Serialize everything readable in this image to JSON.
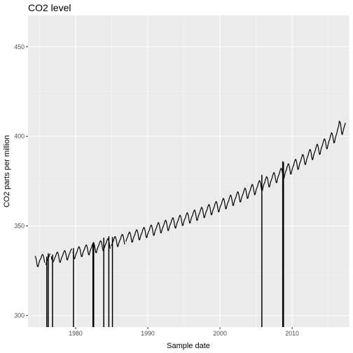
{
  "chart_data": {
    "type": "line",
    "title": "CO2 level",
    "xlabel": "Sample date",
    "ylabel": "CO2 parts per million",
    "xlim": [
      1973.4,
      2017.9
    ],
    "ylim": [
      293.5,
      467.5
    ],
    "x_ticks": [
      1980,
      1990,
      2000,
      2010
    ],
    "x_tick_labels": [
      "1980",
      "1990",
      "2000",
      "2010"
    ],
    "y_ticks": [
      300,
      350,
      400,
      450
    ],
    "y_tick_labels": [
      "300",
      "350",
      "400",
      "450"
    ],
    "grid": true,
    "legend": "none",
    "colors": {
      "panel": "#ebebeb",
      "grid_major": "#ffffff",
      "line": "#000000",
      "tick_text": "#4d4d4d"
    },
    "series": [
      {
        "start_year": 1974.375,
        "step_years": 0.08333333,
        "values": [
          333.19,
          332.5,
          331.1,
          329.1,
          327.3,
          327.2,
          328.6,
          329.8,
          330.9,
          331.4,
          332.0,
          333.4,
          333.9,
          334.0,
          333.0,
          331.5,
          329.4,
          "NA",
          328.2,
          329.6,
          330.6,
          331.3,
          331.8,
          332.9,
          333.7,
          334.5,
          "NA",
          333.0,
          331.0,
          "NA",
          329.8,
          330.4,
          331.4,
          332.3,
          333.0,
          333.9,
          334.9,
          335.4,
          334.9,
          333.6,
          331.5,
          329.8,
          329.6,
          331.0,
          332.1,
          332.8,
          333.5,
          334.7,
          335.4,
          336.2,
          335.9,
          334.8,
          333.0,
          331.1,
          331.0,
          332.4,
          333.4,
          334.3,
          335.0,
          336.0,
          336.7,
          337.3,
          "NA",
          335.5,
          333.7,
          331.8,
          331.7,
          333.1,
          334.2,
          335.0,
          335.7,
          337.0,
          337.8,
          338.4,
          337.9,
          336.6,
          334.7,
          333.0,
          332.8,
          334.1,
          335.3,
          336.2,
          336.8,
          338.0,
          338.7,
          339.4,
          339.0,
          337.7,
          335.7,
          334.0,
          333.8,
          335.3,
          336.4,
          337.3,
          338.0,
          339.2,
          339.9,
          340.6,
          340.2,
          338.8,
          336.9,
          335.1,
          335.0,
          336.5,
          337.6,
          338.4,
          339.1,
          340.3,
          341.1,
          341.7,
          341.3,
          340.0,
          338.0,
          336.2,
          336.1,
          337.6,
          338.7,
          339.5,
          340.2,
          341.5,
          342.2,
          342.9,
          342.4,
          341.1,
          339.2,
          337.3,
          "NA",
          338.7,
          339.8,
          340.7,
          341.3,
          342.6,
          343.4,
          344.1,
          343.6,
          342.3,
          340.3,
          338.5,
          338.5,
          340.0,
          341.1,
          341.9,
          342.6,
          343.9,
          344.6,
          345.3,
          344.9,
          343.5,
          341.5,
          339.7,
          "NA",
          341.2,
          342.4,
          343.2,
          343.8,
          345.1,
          345.9,
          346.6,
          346.1,
          344.8,
          342.8,
          340.9,
          341.0,
          342.5,
          343.6,
          344.4,
          345.1,
          346.4,
          347.1,
          347.9,
          347.4,
          346.0,
          344.1,
          342.2,
          342.2,
          343.7,
          344.9,
          345.7,
          346.3,
          347.7,
          348.5,
          349.2,
          348.7,
          347.3,
          345.3,
          343.5,
          343.5,
          345.0,
          346.1,
          347.0,
          347.6,
          348.9,
          349.8,
          350.5,
          350.0,
          348.6,
          346.6,
          344.7,
          344.8,
          346.3,
          347.5,
          348.3,
          349.0,
          350.3,
          351.1,
          351.9,
          351.4,
          350.0,
          348.0,
          346.1,
          346.2,
          347.7,
          348.8,
          349.7,
          350.3,
          351.6,
          352.5,
          353.2,
          352.7,
          351.3,
          349.3,
          347.4,
          347.5,
          349.0,
          350.2,
          351.0,
          351.6,
          353.0,
          353.8,
          354.6,
          354.1,
          352.7,
          350.6,
          348.8,
          348.8,
          350.3,
          351.5,
          352.4,
          353.0,
          354.3,
          355.2,
          356.0,
          355.5,
          354.1,
          352.1,
          350.2,
          350.3,
          351.8,
          353.0,
          353.8,
          354.4,
          355.8,
          356.6,
          357.4,
          356.9,
          355.5,
          353.5,
          351.6,
          351.7,
          353.2,
          354.4,
          355.3,
          355.9,
          357.3,
          358.1,
          358.9,
          358.4,
          357.0,
          354.9,
          353.0,
          353.2,
          354.7,
          355.9,
          356.7,
          357.4,
          358.7,
          359.6,
          360.4,
          359.9,
          358.5,
          356.5,
          354.6,
          354.7,
          356.2,
          357.4,
          358.3,
          358.9,
          360.3,
          361.2,
          362.0,
          361.5,
          360.1,
          358.0,
          356.2,
          356.3,
          357.8,
          359.0,
          359.9,
          360.6,
          362.0,
          362.8,
          363.6,
          363.2,
          361.7,
          359.7,
          357.8,
          357.9,
          359.5,
          360.7,
          361.6,
          362.2,
          363.6,
          364.5,
          365.4,
          364.9,
          363.5,
          361.4,
          359.5,
          359.7,
          361.3,
          362.5,
          363.4,
          364.0,
          365.5,
          366.3,
          367.2,
          366.8,
          365.3,
          363.3,
          361.4,
          361.5,
          363.1,
          364.3,
          365.3,
          365.9,
          367.3,
          368.2,
          369.1,
          368.6,
          367.2,
          365.2,
          363.3,
          363.5,
          365.1,
          366.3,
          367.2,
          367.9,
          369.3,
          370.2,
          371.1,
          370.7,
          369.2,
          367.2,
          365.3,
          365.5,
          367.1,
          368.3,
          369.3,
          369.9,
          371.4,
          372.3,
          373.2,
          372.8,
          371.3,
          369.3,
          367.4,
          367.6,
          369.2,
          370.4,
          371.4,
          372.0,
          373.5,
          374.4,
          375.3,
          374.9,
          373.5,
          371.4,
          369.6,
          369.7,
          371.4,
          372.6,
          373.6,
          374.2,
          375.7,
          376.6,
          377.5,
          377.1,
          375.7,
          373.6,
          371.7,
          371.9,
          373.6,
          374.8,
          375.8,
          376.5,
          378.0,
          378.9,
          379.8,
          379.4,
          378.0,
          375.9,
          374.1,
          374.2,
          375.9,
          377.2,
          378.2,
          378.8,
          380.3,
          381.3,
          382.2,
          381.8,
          380.4,
          378.3,
          376.4,
          376.6,
          378.3,
          379.6,
          380.6,
          381.3,
          382.8,
          383.7,
          384.7,
          384.3,
          382.8,
          380.8,
          378.9,
          379.1,
          380.8,
          382.1,
          383.1,
          383.8,
          385.3,
          386.3,
          387.2,
          386.8,
          385.4,
          383.3,
          381.5,
          381.7,
          383.4,
          384.7,
          385.7,
          386.4,
          387.9,
          388.9,
          389.9,
          389.5,
          388.1,
          386.0,
          384.2,
          384.4,
          386.1,
          387.4,
          388.5,
          389.2,
          390.7,
          391.7,
          392.7,
          392.3,
          390.9,
          388.8,
          386.9,
          387.2,
          388.9,
          390.3,
          391.3,
          392.0,
          393.6,
          394.6,
          395.6,
          395.2,
          393.8,
          391.7,
          389.9,
          390.1,
          391.9,
          393.3,
          394.3,
          395.1,
          396.6,
          397.6,
          398.6,
          398.3,
          396.9,
          394.8,
          393.0,
          393.2,
          395.0,
          396.4,
          397.5,
          398.3,
          399.9,
          400.9,
          402.0,
          401.6,
          400.2,
          398.1,
          396.3,
          396.6,
          398.5,
          399.9,
          401.0,
          402.0,
          403.7,
          404.8,
          406.0,
          408.5,
          408.0,
          407.2,
          404.1,
          401.5,
          401.0,
          402.6,
          404.0,
          405.2,
          406.2,
          407.5
        ]
      }
    ],
    "drops": [
      {
        "x": 1976.0,
        "y_from": 332.9
      },
      {
        "x": 1976.2,
        "y_from": 334.7
      },
      {
        "x": 1976.8,
        "y_from": 334.0
      },
      {
        "x": 1979.7,
        "y_from": 337.6
      },
      {
        "x": 1982.4,
        "y_from": 340.5
      },
      {
        "x": 1982.5,
        "y_from": 340.9
      },
      {
        "x": 1983.9,
        "y_from": 343.4
      },
      {
        "x": 1984.6,
        "y_from": 344.2
      },
      {
        "x": 1985.1,
        "y_from": 343.8
      },
      {
        "x": 2005.8,
        "y_from": 378.5
      },
      {
        "x": 2008.7,
        "y_from": 386.0
      },
      {
        "x": 2008.8,
        "y_from": 385.6
      }
    ]
  }
}
